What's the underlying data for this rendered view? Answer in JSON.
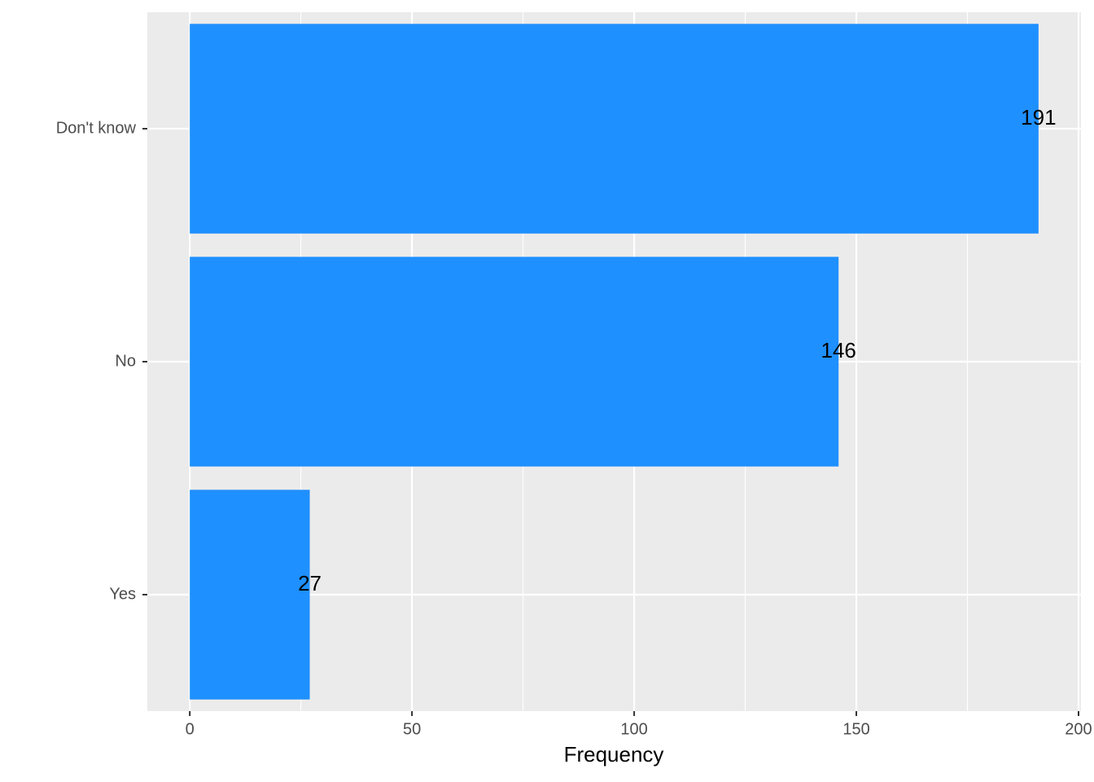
{
  "chart_data": {
    "type": "bar",
    "orientation": "horizontal",
    "categories": [
      "Don't know",
      "No",
      "Yes"
    ],
    "values": [
      191,
      146,
      27
    ],
    "color": "#1e90ff",
    "xlabel": "Frequency",
    "xlim": [
      -9.55,
      200.55
    ],
    "xticks": [
      0,
      50,
      100,
      150,
      200
    ],
    "xminor": [
      25,
      75,
      125,
      175
    ],
    "grid": true
  }
}
